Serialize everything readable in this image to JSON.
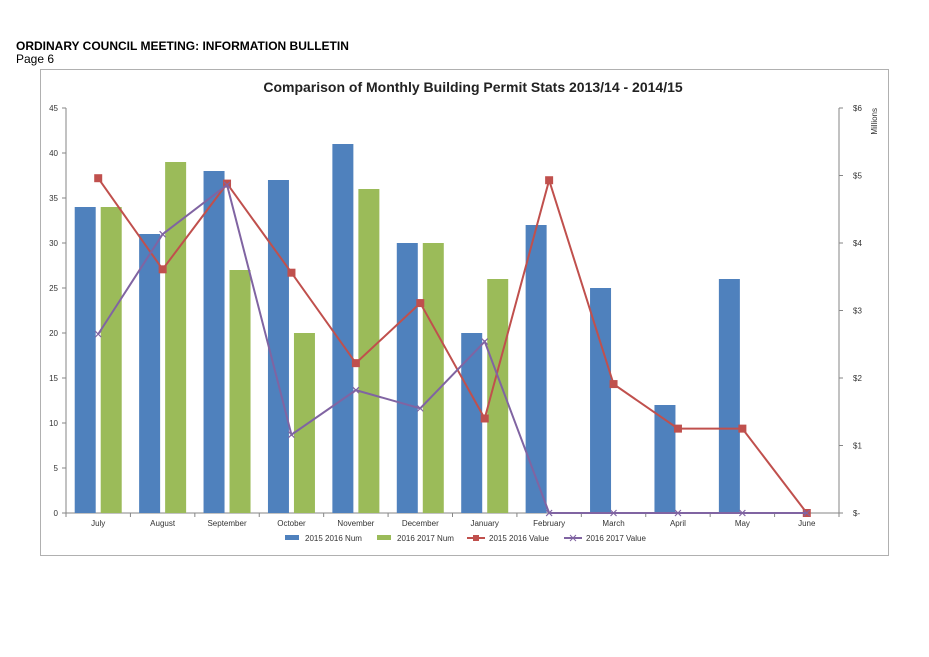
{
  "document": {
    "title": "ORDINARY COUNCIL MEETING: INFORMATION BULLETIN",
    "page": "Page 6"
  },
  "chart_data": {
    "type": "bar",
    "title": "Comparison of Monthly Building Permit Stats 2013/14 - 2014/15",
    "categories": [
      "July",
      "August",
      "September",
      "October",
      "November",
      "December",
      "January",
      "February",
      "March",
      "April",
      "May",
      "June"
    ],
    "series": [
      {
        "name": "2015 2016 Num",
        "kind": "bar",
        "axis": "left",
        "color": "#4f81bd",
        "values": [
          34,
          31,
          38,
          37,
          41,
          30,
          20,
          32,
          25,
          12,
          26,
          null
        ]
      },
      {
        "name": "2016 2017 Num",
        "kind": "bar",
        "axis": "left",
        "color": "#9bbb59",
        "values": [
          34,
          39,
          27,
          20,
          36,
          30,
          26,
          null,
          null,
          null,
          null,
          null
        ]
      },
      {
        "name": "2015 2016 Value",
        "kind": "line",
        "axis": "right",
        "color": "#c0504d",
        "marker": "square",
        "values": [
          4.96,
          3.61,
          4.88,
          3.56,
          2.22,
          3.11,
          1.4,
          4.93,
          1.91,
          1.25,
          1.25,
          0
        ]
      },
      {
        "name": "2016 2017 Value",
        "kind": "line",
        "axis": "right",
        "color": "#8064a2",
        "marker": "x",
        "values": [
          2.65,
          4.13,
          4.86,
          1.16,
          1.82,
          1.55,
          2.54,
          0,
          0,
          0,
          0,
          0
        ]
      }
    ],
    "y_left": {
      "ylim": [
        0,
        45
      ],
      "ticks": [
        0,
        5,
        10,
        15,
        20,
        25,
        30,
        35,
        40,
        45
      ]
    },
    "y_right": {
      "ylabel": "Millions",
      "ylim": [
        0,
        6
      ],
      "ticks": [
        0,
        1,
        2,
        3,
        4,
        5,
        6
      ],
      "tick_labels": [
        "$-",
        "$1",
        "$2",
        "$3",
        "$4",
        "$5",
        "$6"
      ]
    },
    "legend": "bottom",
    "grid": false
  }
}
